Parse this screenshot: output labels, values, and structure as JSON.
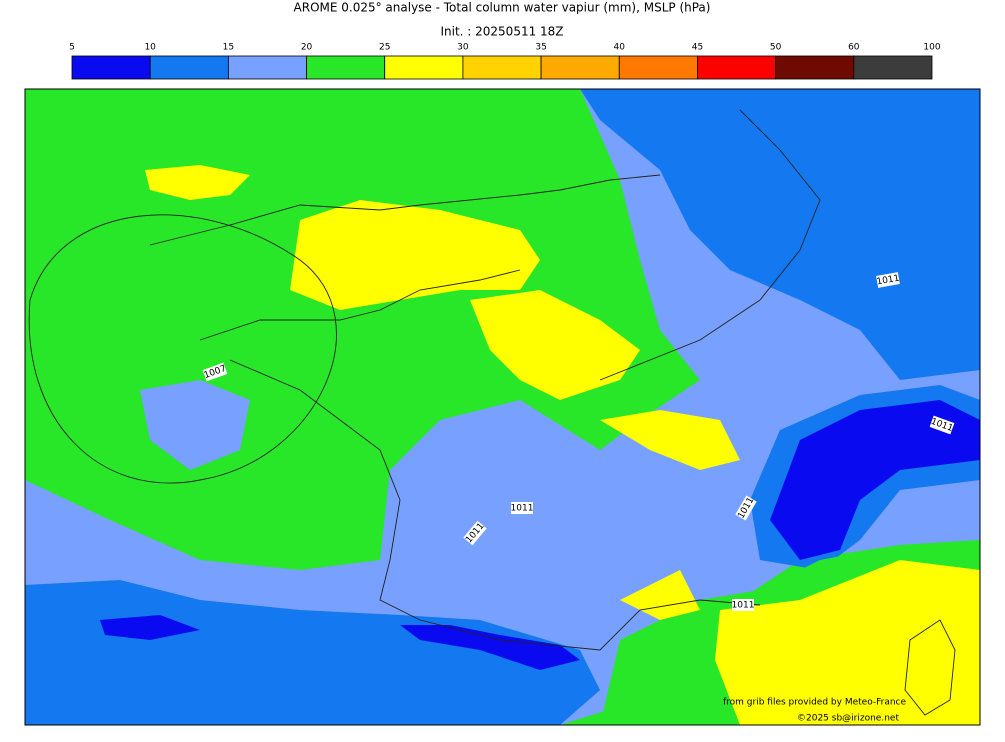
{
  "title": "AROME 0.025° analyse - Total column water vapiur (mm), MSLP (hPa)",
  "subtitle": "Init. : 20250511 18Z",
  "colorbar": {
    "levels": [
      5,
      10,
      15,
      20,
      25,
      30,
      35,
      40,
      45,
      50,
      60,
      100
    ],
    "colors": [
      "#0a0af0",
      "#1478f0",
      "#78a0ff",
      "#28e628",
      "#ffff00",
      "#ffd200",
      "#ffaa00",
      "#ff7800",
      "#ff0000",
      "#6e0a00",
      "#3c3c3c"
    ]
  },
  "isobar_labels": [
    "1011",
    "1007",
    "1011",
    "1011",
    "1011",
    "1011",
    "1011"
  ],
  "credits": [
    "from grib files provided by Meteo-France",
    "©2025 sb@irizone.net"
  ]
}
